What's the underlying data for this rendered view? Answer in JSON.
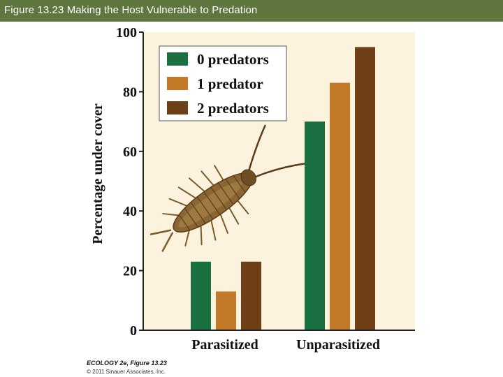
{
  "header": {
    "title": "Figure 13.23  Making the Host Vulnerable to Predation"
  },
  "chart_data": {
    "type": "bar",
    "title": "",
    "xlabel": "",
    "ylabel": "Percentage under cover",
    "ylim": [
      0,
      100
    ],
    "yticks": [
      0,
      20,
      40,
      60,
      80,
      100
    ],
    "categories": [
      "Parasitized",
      "Unparasitized"
    ],
    "series": [
      {
        "name": "0 predators",
        "color": "#1a7040",
        "values": [
          23,
          70
        ]
      },
      {
        "name": "1 predator",
        "color": "#c27a28",
        "values": [
          13,
          83
        ]
      },
      {
        "name": "2 predators",
        "color": "#6e3f16",
        "values": [
          23,
          95
        ]
      }
    ],
    "legend_position": "top-left",
    "plot_background": "#fbf3de",
    "image": "isopod illustration"
  },
  "credits": {
    "line1": "ECOLOGY 2e, Figure 13.23",
    "line2": "© 2011 Sinauer Associates, Inc."
  },
  "colors": {
    "header_bg": "#5f773f"
  }
}
